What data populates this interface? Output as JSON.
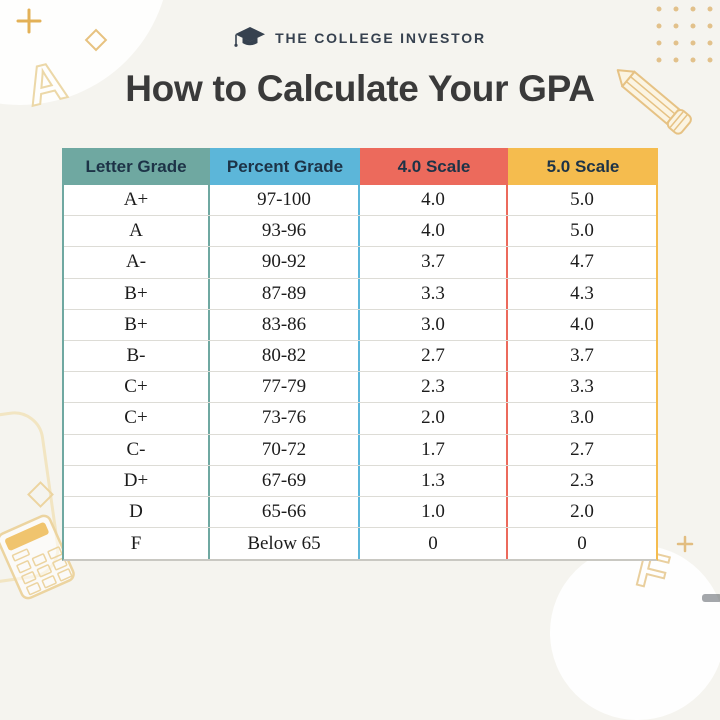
{
  "title": "How to Calculate Your GPA",
  "logo": {
    "brand": "THE COLLEGE INVESTOR"
  },
  "colors": {
    "background": "#f5f4ef",
    "letter_grade_header": "#6fa8a1",
    "percent_grade_header": "#5cb6d9",
    "scale40_header": "#ec6a5c",
    "scale50_header": "#f5bc4e",
    "header_text": "#1d3347",
    "body_text": "#1c1c1c",
    "brand_navy": "#36414f",
    "accent_gold": "#e5b45f",
    "pale_gold_outline": "#ecd4a0"
  },
  "icons": [
    "graduation-cap-icon",
    "plus-icon",
    "diamond-icon",
    "letter-a-doodle-icon",
    "dots-grid-icon",
    "pencil-icon",
    "rounded-frame-icon",
    "calculator-icon",
    "letter-f-doodle-icon"
  ],
  "table": {
    "headers": [
      {
        "label": "Letter Grade",
        "color": "#6fa8a1"
      },
      {
        "label": "Percent Grade",
        "color": "#5cb6d9"
      },
      {
        "label": "4.0 Scale",
        "color": "#ec6a5c"
      },
      {
        "label": "5.0 Scale",
        "color": "#f5bc4e"
      }
    ],
    "rows": [
      [
        "A+",
        "97-100",
        "4.0",
        "5.0"
      ],
      [
        "A",
        "93-96",
        "4.0",
        "5.0"
      ],
      [
        "A-",
        "90-92",
        "3.7",
        "4.7"
      ],
      [
        "B+",
        "87-89",
        "3.3",
        "4.3"
      ],
      [
        "B+",
        "83-86",
        "3.0",
        "4.0"
      ],
      [
        "B-",
        "80-82",
        "2.7",
        "3.7"
      ],
      [
        "C+",
        "77-79",
        "2.3",
        "3.3"
      ],
      [
        "C+",
        "73-76",
        "2.0",
        "3.0"
      ],
      [
        "C-",
        "70-72",
        "1.7",
        "2.7"
      ],
      [
        "D+",
        "67-69",
        "1.3",
        "2.3"
      ],
      [
        "D",
        "65-66",
        "1.0",
        "2.0"
      ],
      [
        "F",
        "Below 65",
        "0",
        "0"
      ]
    ]
  },
  "chart_data": {
    "type": "table",
    "title": "How to Calculate Your GPA",
    "columns": [
      "Letter Grade",
      "Percent Grade",
      "4.0 Scale",
      "5.0 Scale"
    ],
    "rows": [
      [
        "A+",
        "97-100",
        "4.0",
        "5.0"
      ],
      [
        "A",
        "93-96",
        "4.0",
        "5.0"
      ],
      [
        "A-",
        "90-92",
        "3.7",
        "4.7"
      ],
      [
        "B+",
        "87-89",
        "3.3",
        "4.3"
      ],
      [
        "B+",
        "83-86",
        "3.0",
        "4.0"
      ],
      [
        "B-",
        "80-82",
        "2.7",
        "3.7"
      ],
      [
        "C+",
        "77-79",
        "2.3",
        "3.3"
      ],
      [
        "C+",
        "73-76",
        "2.0",
        "3.0"
      ],
      [
        "C-",
        "70-72",
        "1.7",
        "2.7"
      ],
      [
        "D+",
        "67-69",
        "1.3",
        "2.3"
      ],
      [
        "D",
        "65-66",
        "1.0",
        "2.0"
      ],
      [
        "F",
        "Below 65",
        "0",
        "0"
      ]
    ]
  }
}
